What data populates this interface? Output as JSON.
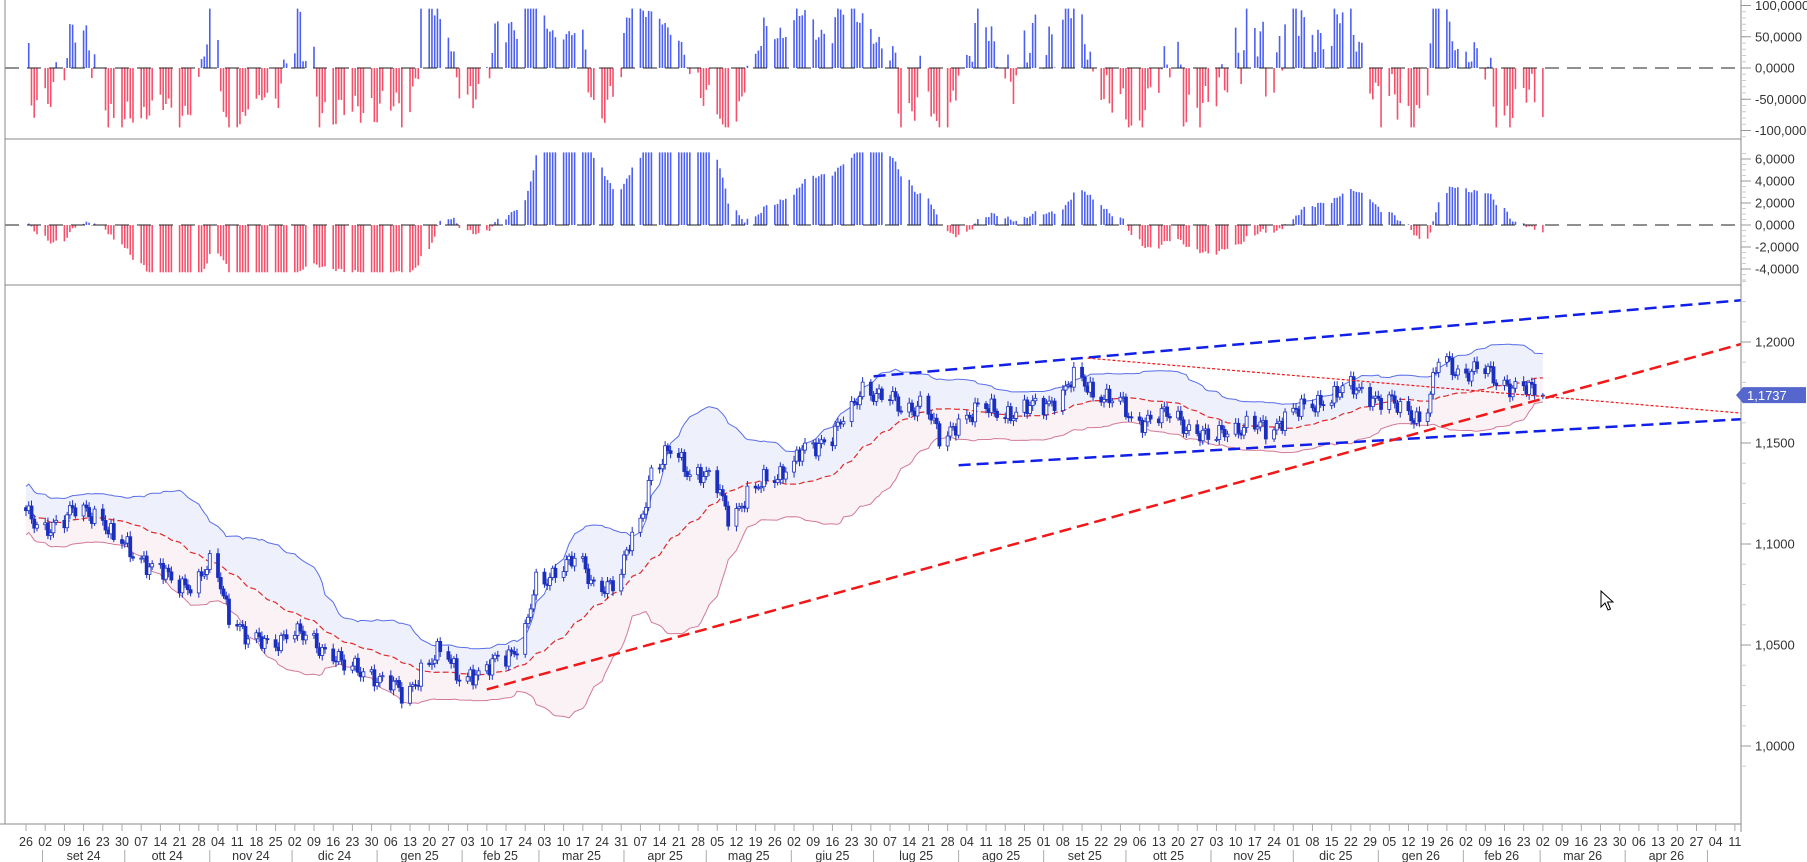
{
  "colors": {
    "candle": "#1a2fbf",
    "band_upper": "#5a6ee8",
    "band_lower": "#d27a98",
    "band_fill_upper": "#eef0fc",
    "band_fill_lower": "#fbf2f5",
    "middle_line": "#e02a2a",
    "hist_positive": "#4c5ff0",
    "hist_negative": "#f4506c",
    "trend_blue": "#1020e8",
    "trend_red": "#f01818",
    "price_label_bg": "#5566cc"
  },
  "chart_data": [
    {
      "type": "bar",
      "panel": "oscillator-top",
      "ylim": [
        -100,
        100
      ],
      "y_ticks": [
        "100,0000",
        "50,0000",
        "0,0000",
        "-50,0000",
        "-100,0000"
      ],
      "y_tick_values": [
        100,
        50,
        0,
        -50,
        -100
      ],
      "zero_line": "dashed"
    },
    {
      "type": "bar",
      "panel": "oscillator-middle",
      "ylim": [
        -4,
        6
      ],
      "y_ticks": [
        "6,0000",
        "4,0000",
        "2,0000",
        "0,0000",
        "-2,0000",
        "-4,0000"
      ],
      "y_tick_values": [
        6,
        4,
        2,
        0,
        -2,
        -4
      ],
      "zero_line": "dashed"
    },
    {
      "type": "candlestick",
      "panel": "price",
      "ylim": [
        0.995,
        1.225
      ],
      "y_ticks": [
        "1,2000",
        "1,1500",
        "1,1000",
        "1,0500",
        "1,0000"
      ],
      "y_tick_values": [
        1.2,
        1.15,
        1.1,
        1.05,
        1.0
      ],
      "last_price_label": "1,1737",
      "last_price": 1.1737,
      "overlays": [
        "bollinger-bands",
        "moving-average-dashed"
      ],
      "weekly_close": {
        "dates": [
          "2024-08-26",
          "2024-09-02",
          "2024-09-09",
          "2024-09-16",
          "2024-09-23",
          "2024-09-30",
          "2024-10-07",
          "2024-10-14",
          "2024-10-21",
          "2024-10-28",
          "2024-11-04",
          "2024-11-11",
          "2024-11-18",
          "2024-11-25",
          "2024-12-02",
          "2024-12-09",
          "2024-12-16",
          "2024-12-23",
          "2024-12-30",
          "2025-01-06",
          "2025-01-13",
          "2025-01-20",
          "2025-01-27",
          "2025-02-03",
          "2025-02-10",
          "2025-02-17",
          "2025-02-24",
          "2025-03-03",
          "2025-03-10",
          "2025-03-17",
          "2025-03-24",
          "2025-03-31",
          "2025-04-07",
          "2025-04-14",
          "2025-04-21",
          "2025-04-28",
          "2025-05-05",
          "2025-05-12",
          "2025-05-19",
          "2025-05-26",
          "2025-06-02",
          "2025-06-09",
          "2025-06-16",
          "2025-06-23",
          "2025-06-30",
          "2025-07-07",
          "2025-07-14",
          "2025-07-21",
          "2025-07-28",
          "2025-08-04",
          "2025-08-11",
          "2025-08-18",
          "2025-08-25",
          "2025-09-01",
          "2025-09-08",
          "2025-09-15",
          "2025-09-22",
          "2025-09-29",
          "2025-10-06",
          "2025-10-13",
          "2025-10-20",
          "2025-10-27",
          "2025-11-03",
          "2025-11-10",
          "2025-11-17",
          "2025-11-24",
          "2025-12-01",
          "2025-12-08",
          "2025-12-15",
          "2025-12-22",
          "2025-12-29",
          "2026-01-05",
          "2026-01-12",
          "2026-01-19",
          "2026-01-26",
          "2026-02-02",
          "2026-02-09",
          "2026-02-16",
          "2026-02-23",
          "2026-03-02"
        ],
        "close": [
          1.116,
          1.108,
          1.111,
          1.116,
          1.116,
          1.101,
          1.096,
          1.088,
          1.081,
          1.081,
          1.088,
          1.066,
          1.051,
          1.051,
          1.056,
          1.053,
          1.048,
          1.038,
          1.038,
          1.031,
          1.026,
          1.038,
          1.046,
          1.036,
          1.033,
          1.046,
          1.048,
          1.081,
          1.088,
          1.091,
          1.081,
          1.078,
          1.106,
          1.136,
          1.146,
          1.136,
          1.131,
          1.116,
          1.123,
          1.133,
          1.138,
          1.146,
          1.153,
          1.161,
          1.178,
          1.173,
          1.166,
          1.171,
          1.15,
          1.163,
          1.166,
          1.166,
          1.165,
          1.168,
          1.173,
          1.181,
          1.176,
          1.171,
          1.161,
          1.163,
          1.163,
          1.158,
          1.151,
          1.158,
          1.158,
          1.156,
          1.165,
          1.166,
          1.173,
          1.176,
          1.176,
          1.171,
          1.166,
          1.163,
          1.19,
          1.186,
          1.186,
          1.181,
          1.178,
          1.1737
        ]
      },
      "trendlines": [
        {
          "name": "channel-upper",
          "color": "blue",
          "style": "dashed",
          "from": [
            "2025-07-01",
            1.183
          ],
          "to": [
            "2026-05-16",
            1.221
          ]
        },
        {
          "name": "channel-lower",
          "color": "blue",
          "style": "dashed",
          "from": [
            "2025-08-01",
            1.139
          ],
          "to": [
            "2026-05-16",
            1.162
          ]
        },
        {
          "name": "support-rising",
          "color": "red",
          "style": "dashed",
          "from": [
            "2025-02-10",
            1.028
          ],
          "to": [
            "2026-05-16",
            1.2
          ]
        },
        {
          "name": "resistance-falling",
          "color": "red",
          "style": "dotted",
          "from": [
            "2025-09-17",
            1.192
          ],
          "to": [
            "2026-05-16",
            1.1645
          ]
        }
      ]
    }
  ],
  "x_axis": {
    "week_labels": [
      "26",
      "02",
      "09",
      "16",
      "23",
      "30",
      "07",
      "14",
      "21",
      "28",
      "04",
      "11",
      "18",
      "25",
      "02",
      "09",
      "16",
      "23",
      "30",
      "06",
      "13",
      "20",
      "27",
      "03",
      "10",
      "17",
      "24",
      "03",
      "10",
      "17",
      "24",
      "31",
      "07",
      "14",
      "21",
      "28",
      "05",
      "12",
      "19",
      "26",
      "02",
      "09",
      "16",
      "23",
      "30",
      "07",
      "14",
      "21",
      "28",
      "04",
      "11",
      "18",
      "25",
      "01",
      "08",
      "15",
      "22",
      "29",
      "06",
      "13",
      "20",
      "27",
      "03",
      "10",
      "17",
      "24",
      "01",
      "08",
      "15",
      "22",
      "29",
      "05",
      "12",
      "19",
      "26",
      "02",
      "09",
      "16",
      "23",
      "02",
      "09",
      "16",
      "23",
      "30",
      "06",
      "13",
      "20",
      "27",
      "04",
      "11"
    ],
    "month_labels": [
      "set 24",
      "ott 24",
      "nov 24",
      "dic 24",
      "gen 25",
      "feb 25",
      "mar 25",
      "apr 25",
      "mag 25",
      "giu 25",
      "lug 25",
      "ago 25",
      "set 25",
      "ott 25",
      "nov 25",
      "dic 25",
      "gen 26",
      "feb 26",
      "mar 26",
      "apr 26"
    ]
  },
  "cursor": {
    "icon": "mouse-pointer-icon"
  }
}
